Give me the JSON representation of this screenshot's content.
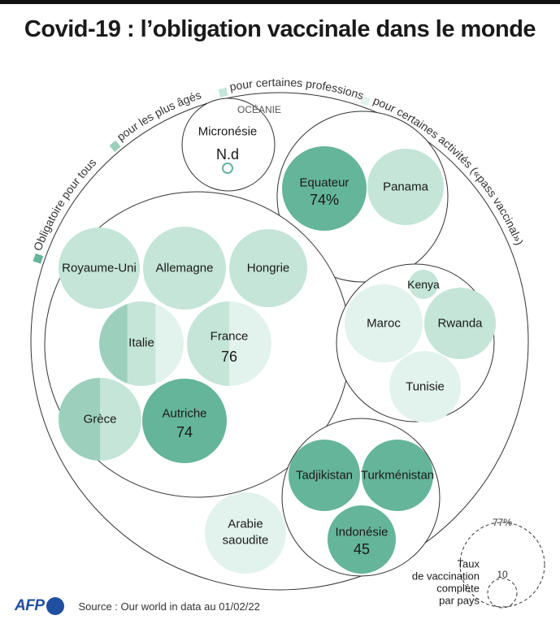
{
  "title": "Covid-19 : l’obligation vaccinale dans le monde",
  "colors": {
    "tous": "#64b59a",
    "ages": "#9cd0bd",
    "professions": "#c4e5d8",
    "activites": "#e2f2ec",
    "stroke": "#333333",
    "text": "#1a1a1a"
  },
  "legend": [
    {
      "label": "Obligatoire pour tous",
      "color_key": "tous"
    },
    {
      "label": "pour les plus âgés",
      "color_key": "ages"
    },
    {
      "label": "pour certaines professions",
      "color_key": "professions"
    },
    {
      "label": "pour certaines activités («pass vaccinal»)",
      "color_key": "activites"
    }
  ],
  "groups": [
    {
      "name": "oceanie",
      "label": "OCÉANIE"
    },
    {
      "name": "amerique",
      "label": ""
    },
    {
      "name": "europe",
      "label": ""
    },
    {
      "name": "afrique",
      "label": ""
    },
    {
      "name": "asie",
      "label": ""
    }
  ],
  "chart_data": {
    "type": "bubble",
    "title": "Covid-19 : l’obligation vaccinale dans le monde",
    "size_metric": "Taux de vaccination complète par pays (%)",
    "countries": [
      {
        "name": "Micronésie",
        "group": "oceanie",
        "value": null,
        "value_label": "N.d",
        "types": [
          "tous"
        ]
      },
      {
        "name": "Equateur",
        "group": "amerique",
        "value": 74,
        "value_label": "74%",
        "types": [
          "tous"
        ]
      },
      {
        "name": "Panama",
        "group": "amerique",
        "value": 74,
        "value_label": "",
        "types": [
          "professions"
        ]
      },
      {
        "name": "Royaume-Uni",
        "group": "europe",
        "value": 72,
        "value_label": "",
        "types": [
          "professions"
        ]
      },
      {
        "name": "Allemagne",
        "group": "europe",
        "value": 75,
        "value_label": "",
        "types": [
          "professions"
        ]
      },
      {
        "name": "Hongrie",
        "group": "europe",
        "value": 63,
        "value_label": "",
        "types": [
          "professions"
        ]
      },
      {
        "name": "Italie",
        "group": "europe",
        "value": 76,
        "value_label": "",
        "types": [
          "ages",
          "professions",
          "activites"
        ]
      },
      {
        "name": "France",
        "group": "europe",
        "value": 76,
        "value_label": "76",
        "types": [
          "professions",
          "activites"
        ]
      },
      {
        "name": "Grèce",
        "group": "europe",
        "value": 71,
        "value_label": "",
        "types": [
          "ages",
          "professions"
        ]
      },
      {
        "name": "Autriche",
        "group": "europe",
        "value": 74,
        "value_label": "74",
        "types": [
          "tous"
        ]
      },
      {
        "name": "Kenya",
        "group": "afrique",
        "value": 10,
        "value_label": "",
        "types": [
          "professions"
        ]
      },
      {
        "name": "Maroc",
        "group": "afrique",
        "value": 64,
        "value_label": "",
        "types": [
          "activites"
        ]
      },
      {
        "name": "Rwanda",
        "group": "afrique",
        "value": 56,
        "value_label": "",
        "types": [
          "professions"
        ]
      },
      {
        "name": "Tunisie",
        "group": "afrique",
        "value": 55,
        "value_label": "",
        "types": [
          "activites"
        ]
      },
      {
        "name": "Arabie saoudite",
        "group": "asie",
        "value": 70,
        "value_label": "",
        "types": [
          "activites"
        ]
      },
      {
        "name": "Tadjikistan",
        "group": "asie",
        "value": 42,
        "value_label": "",
        "types": [
          "tous"
        ]
      },
      {
        "name": "Turkménistan",
        "group": "asie",
        "value": 53,
        "value_label": "",
        "types": [
          "tous"
        ]
      },
      {
        "name": "Indonésie",
        "group": "asie",
        "value": 45,
        "value_label": "45",
        "types": [
          "tous"
        ]
      }
    ],
    "size_legend": {
      "title": [
        "Taux",
        "de vaccination",
        "complète",
        "par pays"
      ],
      "values": [
        77,
        10
      ],
      "labels": [
        "77%",
        "10"
      ]
    }
  },
  "footer": {
    "logo_text": "AFP",
    "source": "Source : Our world in data au 01/02/22"
  }
}
